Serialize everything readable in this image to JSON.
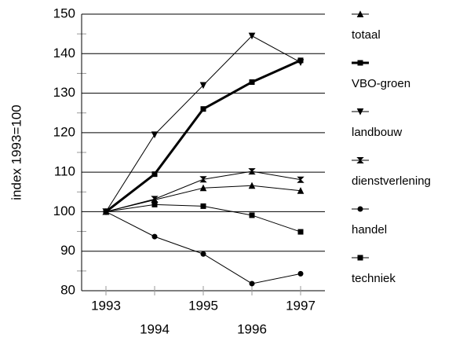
{
  "chart_data": {
    "type": "line",
    "y_label": "index 1993=100",
    "categories": [
      "1993",
      "1994",
      "1995",
      "1996",
      "1997"
    ],
    "ylim": [
      80,
      150
    ],
    "yticks": [
      80,
      90,
      100,
      110,
      120,
      130,
      140,
      150
    ],
    "grid": true,
    "series": [
      {
        "name": "totaal",
        "color": "#000000",
        "marker": "triangle-up",
        "width": 1,
        "values": [
          100,
          103,
          106,
          106.6,
          105.3
        ]
      },
      {
        "name": "VBO-groen",
        "color": "#000000",
        "marker": "square",
        "width": 3,
        "values": [
          100,
          109.5,
          126,
          132.8,
          138.3
        ]
      },
      {
        "name": "landbouw",
        "color": "#000000",
        "marker": "triangle-down",
        "width": 1,
        "values": [
          100,
          119.5,
          132,
          144.5,
          137.8
        ]
      },
      {
        "name": "dienstverlening",
        "color": "#000000",
        "marker": "bowtie",
        "width": 1,
        "values": [
          100,
          103.2,
          108.2,
          110.2,
          108.1
        ]
      },
      {
        "name": "handel",
        "color": "#000000",
        "marker": "circle",
        "width": 1,
        "values": [
          100,
          93.7,
          89.3,
          81.8,
          84.3
        ]
      },
      {
        "name": "techniek",
        "color": "#000000",
        "marker": "square",
        "width": 1,
        "values": [
          100,
          101.8,
          101.4,
          99.1,
          94.9
        ]
      }
    ]
  }
}
